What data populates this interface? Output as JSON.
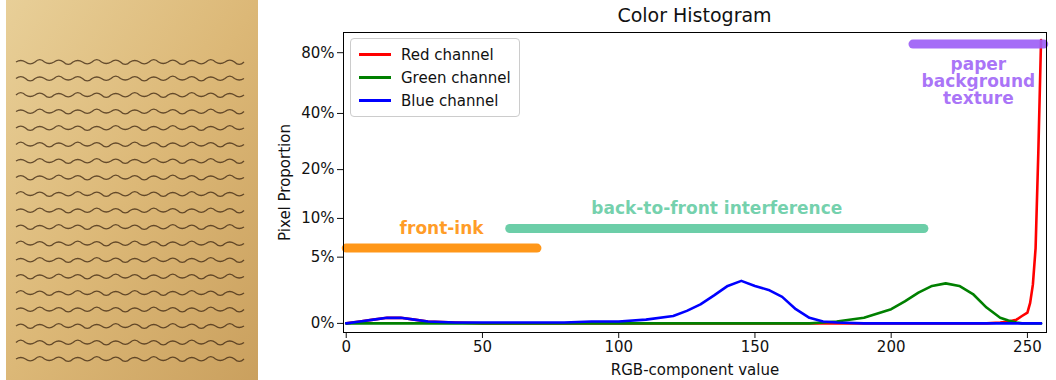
{
  "chart_data": {
    "type": "line",
    "title": "Color Histogram",
    "x_label": "RGB-component value",
    "y_label": "Pixel Proportion",
    "log": "y",
    "grid": false,
    "legend": "upper left",
    "xlim": [
      -1,
      257
    ],
    "xticks": [
      0,
      50,
      100,
      150,
      200,
      250
    ],
    "ylim": [
      -0.5,
      100
    ],
    "yticks": [
      {
        "value": 0,
        "label": "0%"
      },
      {
        "value": 5,
        "label": "5%"
      },
      {
        "value": 10,
        "label": "10%"
      },
      {
        "value": 20,
        "label": "20%"
      },
      {
        "value": 40,
        "label": "40%"
      },
      {
        "value": 80,
        "label": "80%"
      }
    ],
    "x": [
      0,
      5,
      10,
      15,
      20,
      25,
      30,
      40,
      50,
      60,
      70,
      80,
      90,
      100,
      110,
      120,
      125,
      130,
      135,
      140,
      145,
      150,
      155,
      160,
      165,
      170,
      175,
      180,
      190,
      200,
      205,
      210,
      215,
      220,
      225,
      230,
      235,
      240,
      243,
      246,
      248,
      250,
      251,
      252,
      253,
      254,
      255
    ],
    "series": [
      {
        "name": "Red channel",
        "color": "#ff0000",
        "values": [
          0,
          0.1,
          0.2,
          0.3,
          0.3,
          0.2,
          0.1,
          0.05,
          0,
          0,
          0,
          0,
          0,
          0,
          0,
          0,
          0,
          0,
          0,
          0,
          0,
          0,
          0,
          0,
          0,
          0,
          0,
          0,
          0,
          0,
          0,
          0,
          0,
          0,
          0,
          0,
          0,
          0.05,
          0.1,
          0.2,
          0.4,
          0.6,
          1.2,
          2.5,
          6,
          25,
          92
        ]
      },
      {
        "name": "Green channel",
        "color": "#008000",
        "values": [
          0,
          0,
          0,
          0,
          0,
          0,
          0,
          0,
          0,
          0,
          0,
          0,
          0,
          0,
          0,
          0,
          0,
          0,
          0,
          0,
          0,
          0,
          0,
          0,
          0,
          0,
          0.05,
          0.1,
          0.3,
          0.8,
          1.3,
          1.9,
          2.4,
          2.6,
          2.4,
          1.8,
          0.9,
          0.3,
          0.15,
          0.05,
          0,
          0,
          0,
          0,
          0,
          0,
          0
        ]
      },
      {
        "name": "Blue channel",
        "color": "#0000ff",
        "values": [
          0,
          0.1,
          0.2,
          0.3,
          0.3,
          0.2,
          0.1,
          0.05,
          0.05,
          0.05,
          0.05,
          0.05,
          0.1,
          0.1,
          0.2,
          0.4,
          0.7,
          1.1,
          1.7,
          2.4,
          2.8,
          2.4,
          2.1,
          1.6,
          0.8,
          0.3,
          0.1,
          0.05,
          0,
          0,
          0,
          0,
          0,
          0,
          0,
          0,
          0,
          0,
          0,
          0,
          0,
          0,
          0,
          0,
          0,
          0,
          0
        ]
      }
    ],
    "annotations": [
      {
        "text": "front-ink",
        "x": [
          0,
          70
        ],
        "y": 6,
        "color": "#ff8c00"
      },
      {
        "text": "back-to-front interference",
        "x": [
          60,
          212
        ],
        "y": 8.5,
        "color": "#5cc99e"
      },
      {
        "text": "paper background texture",
        "x": [
          208,
          256
        ],
        "y": 88,
        "color": "#9b5cf6"
      }
    ]
  }
}
